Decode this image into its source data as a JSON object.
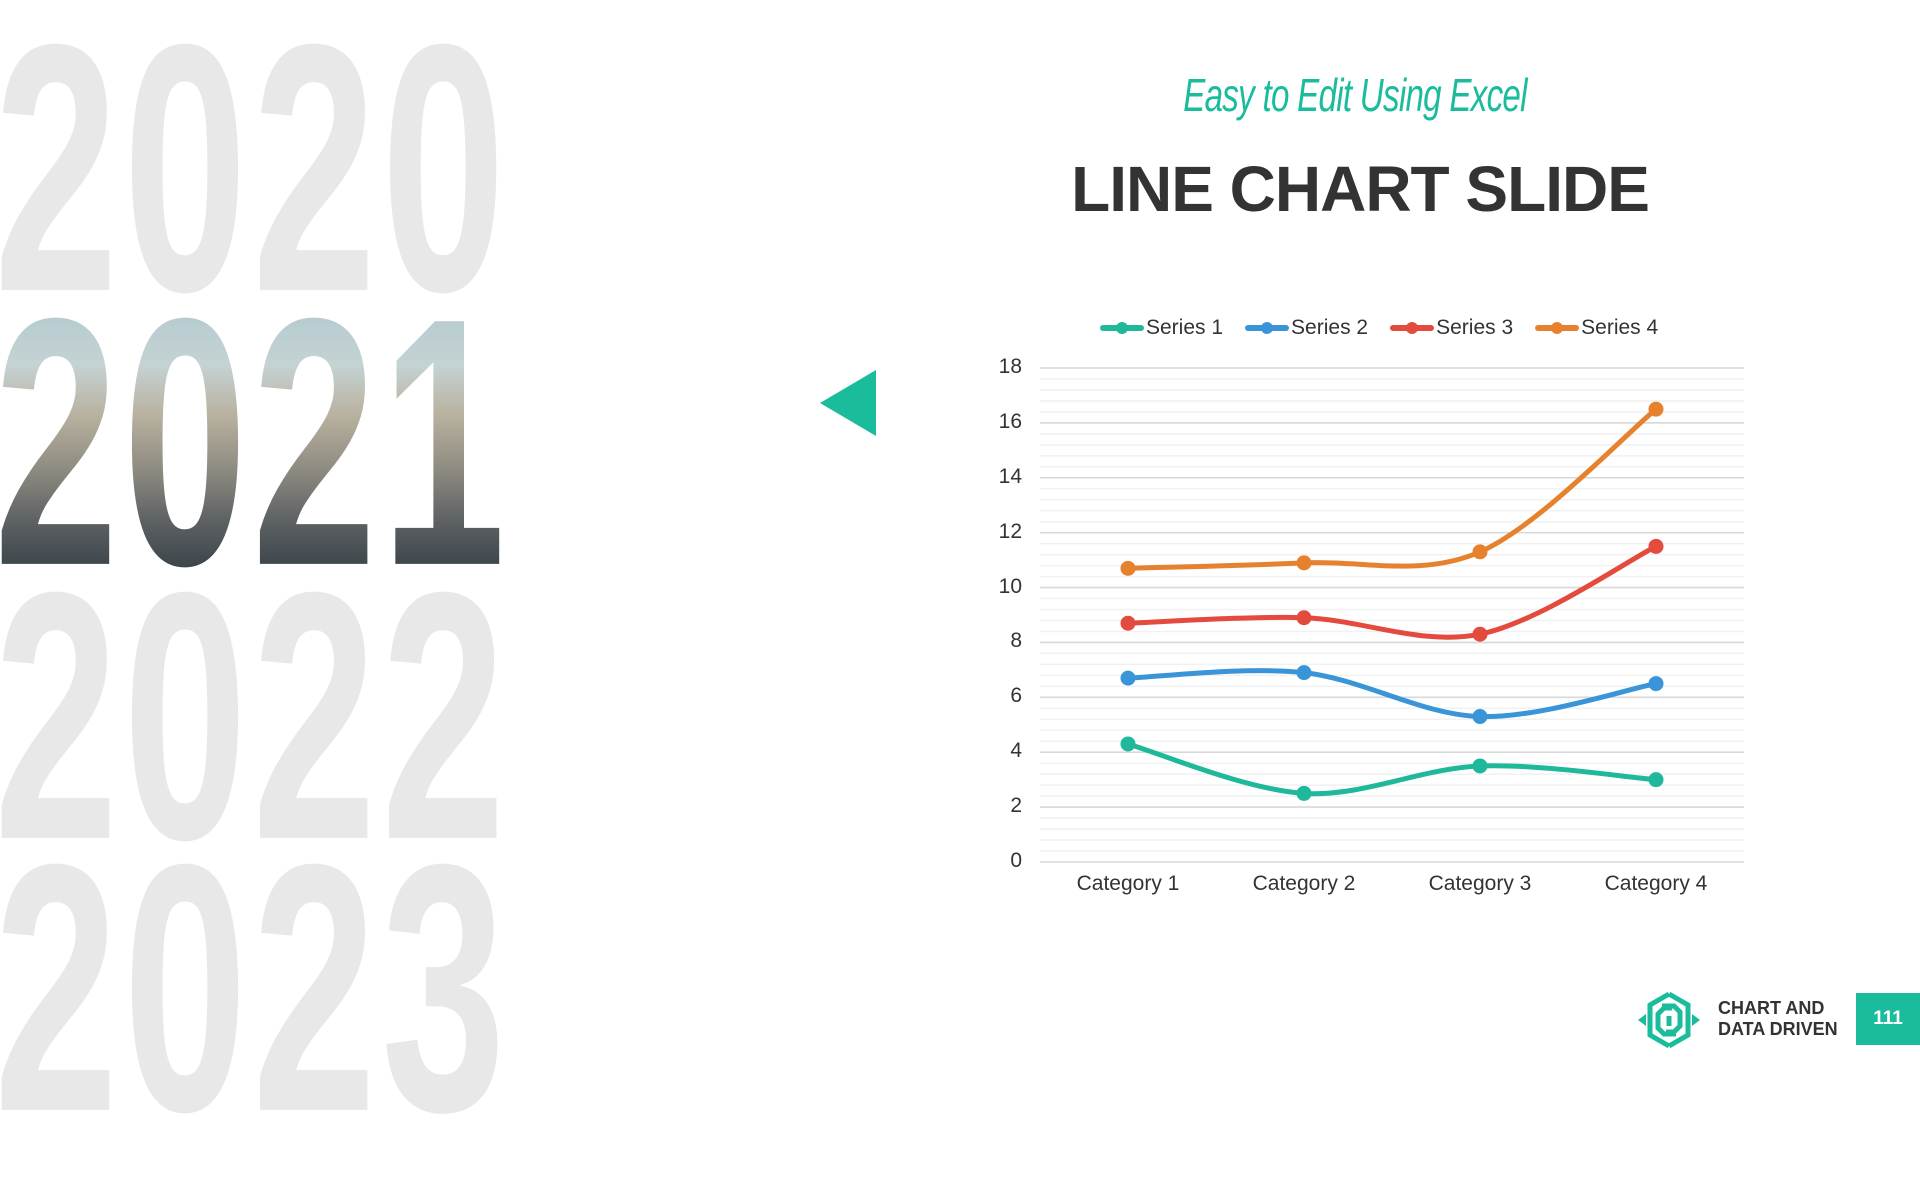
{
  "slide": {
    "subtitle": "Easy to Edit Using Excel",
    "title": "LINE CHART SLIDE",
    "years": [
      "2020",
      "2021",
      "2022",
      "2023"
    ],
    "highlighted_year": "2021",
    "brand_line1": "CHART AND",
    "brand_line2": "DATA DRIVEN",
    "page_number": "111",
    "accent_color": "#1abc9c"
  },
  "chart_data": {
    "type": "line",
    "title": "",
    "xlabel": "",
    "ylabel": "",
    "categories": [
      "Category 1",
      "Category 2",
      "Category 3",
      "Category 4"
    ],
    "series": [
      {
        "name": "Series 1",
        "color": "#1fb89a",
        "values": [
          4.3,
          2.5,
          3.5,
          3.0
        ]
      },
      {
        "name": "Series 2",
        "color": "#3a94d8",
        "values": [
          6.7,
          6.9,
          5.3,
          6.5
        ]
      },
      {
        "name": "Series 3",
        "color": "#e44b3f",
        "values": [
          8.7,
          8.9,
          8.3,
          11.5
        ]
      },
      {
        "name": "Series 4",
        "color": "#e6822e",
        "values": [
          10.7,
          10.9,
          11.3,
          16.5
        ]
      }
    ],
    "yticks": [
      "0",
      "2",
      "4",
      "6",
      "8",
      "10",
      "12",
      "14",
      "16",
      "18"
    ],
    "ylim": [
      0,
      18
    ],
    "grid": true,
    "minor_grid": true,
    "smooth": true,
    "markers": true,
    "legend_position": "top"
  }
}
